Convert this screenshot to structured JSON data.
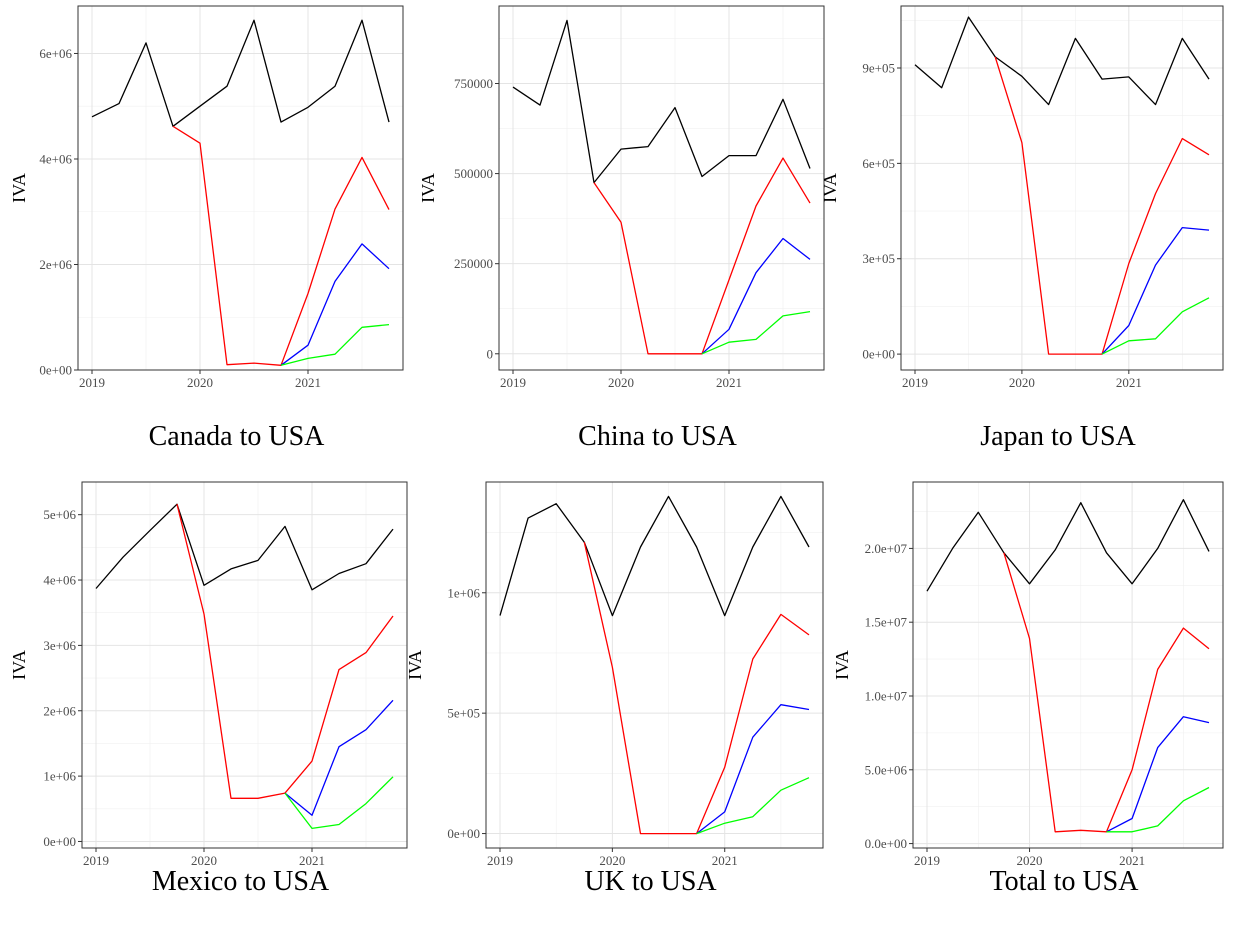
{
  "figure": {
    "series_colors": {
      "baseline": "#000000",
      "red": "#ff0000",
      "blue": "#0000ff",
      "green": "#00ff00"
    }
  },
  "chart_data": [
    {
      "type": "line",
      "title": "Canada to USA",
      "ylabel": "IVA",
      "x": [
        2019,
        2019.25,
        2019.5,
        2019.75,
        2020,
        2020.25,
        2020.5,
        2020.75,
        2021,
        2021.25,
        2021.5,
        2021.75
      ],
      "xlim": [
        2019,
        2021.75
      ],
      "xticks": [
        2019,
        2020,
        2021
      ],
      "xtick_labels": [
        "2019",
        "2020",
        "2021"
      ],
      "ylim": [
        0,
        6900000
      ],
      "yticks": [
        0,
        2000000,
        4000000,
        6000000
      ],
      "ytick_labels": [
        "0e+00",
        "2e+06",
        "4e+06",
        "6e+06"
      ],
      "grid": true,
      "series": [
        {
          "color": "#000000",
          "x": [
            2019,
            2019.25,
            2019.5,
            2019.75,
            2020,
            2020.25,
            2020.5,
            2020.75,
            2021,
            2021.25,
            2021.5,
            2021.75
          ],
          "values": [
            4800000,
            5050000,
            6200000,
            4620000,
            5000000,
            5380000,
            6630000,
            4700000,
            4980000,
            5380000,
            6630000,
            4700000
          ]
        },
        {
          "color": "#ff0000",
          "x": [
            2019.75,
            2020,
            2020.25,
            2020.5,
            2020.75,
            2021,
            2021.25,
            2021.5,
            2021.75
          ],
          "values": [
            4620000,
            4300000,
            100000,
            130000,
            90000,
            1450000,
            3050000,
            4030000,
            3040000
          ]
        },
        {
          "color": "#0000ff",
          "x": [
            2020.75,
            2021,
            2021.25,
            2021.5,
            2021.75
          ],
          "values": [
            90000,
            470000,
            1680000,
            2390000,
            1920000
          ]
        },
        {
          "color": "#00ff00",
          "x": [
            2020.75,
            2021,
            2021.25,
            2021.5,
            2021.75
          ],
          "values": [
            90000,
            220000,
            300000,
            810000,
            860000
          ]
        }
      ]
    },
    {
      "type": "line",
      "title": "China to USA",
      "ylabel": "IVA",
      "x": [
        2019,
        2019.25,
        2019.5,
        2019.75,
        2020,
        2020.25,
        2020.5,
        2020.75,
        2021,
        2021.25,
        2021.5,
        2021.75
      ],
      "xlim": [
        2019,
        2021.75
      ],
      "xticks": [
        2019,
        2020,
        2021
      ],
      "xtick_labels": [
        "2019",
        "2020",
        "2021"
      ],
      "ylim": [
        -45000,
        965000
      ],
      "yticks": [
        0,
        250000,
        500000,
        750000
      ],
      "ytick_labels": [
        "0",
        "250000",
        "500000",
        "750000"
      ],
      "grid": true,
      "series": [
        {
          "color": "#000000",
          "x": [
            2019,
            2019.25,
            2019.5,
            2019.75,
            2020,
            2020.25,
            2020.5,
            2020.75,
            2021,
            2021.25,
            2021.5,
            2021.75
          ],
          "values": [
            740000,
            690000,
            925000,
            475000,
            568000,
            575000,
            683000,
            492000,
            550000,
            550000,
            706000,
            514000
          ]
        },
        {
          "color": "#ff0000",
          "x": [
            2019.75,
            2020,
            2020.25,
            2020.5,
            2020.75,
            2021,
            2021.25,
            2021.5,
            2021.75
          ],
          "values": [
            475000,
            365000,
            0,
            0,
            0,
            205000,
            410000,
            543000,
            418000
          ]
        },
        {
          "color": "#0000ff",
          "x": [
            2020.75,
            2021,
            2021.25,
            2021.5,
            2021.75
          ],
          "values": [
            0,
            68000,
            225000,
            320000,
            262000
          ]
        },
        {
          "color": "#00ff00",
          "x": [
            2020.75,
            2021,
            2021.25,
            2021.5,
            2021.75
          ],
          "values": [
            0,
            32000,
            40000,
            105000,
            117000
          ]
        }
      ]
    },
    {
      "type": "line",
      "title": "Japan to USA",
      "ylabel": "IVA",
      "x": [
        2019,
        2019.25,
        2019.5,
        2019.75,
        2020,
        2020.25,
        2020.5,
        2020.75,
        2021,
        2021.25,
        2021.5,
        2021.75
      ],
      "xlim": [
        2019,
        2021.75
      ],
      "xticks": [
        2019,
        2020,
        2021
      ],
      "xtick_labels": [
        "2019",
        "2020",
        "2021"
      ],
      "ylim": [
        -50000,
        1095000
      ],
      "yticks": [
        0,
        300000,
        600000,
        900000
      ],
      "ytick_labels": [
        "0e+00",
        "3e+05",
        "6e+05",
        "9e+05"
      ],
      "grid": true,
      "series": [
        {
          "color": "#000000",
          "x": [
            2019,
            2019.25,
            2019.5,
            2019.75,
            2020,
            2020.25,
            2020.5,
            2020.75,
            2021,
            2021.25,
            2021.5,
            2021.75
          ],
          "values": [
            910000,
            838000,
            1060000,
            935000,
            874000,
            785000,
            993000,
            865000,
            872000,
            785000,
            993000,
            865000
          ]
        },
        {
          "color": "#ff0000",
          "x": [
            2019.75,
            2020,
            2020.25,
            2020.5,
            2020.75,
            2021,
            2021.25,
            2021.5,
            2021.75
          ],
          "values": [
            935000,
            665000,
            0,
            0,
            0,
            285000,
            505000,
            678000,
            627000
          ]
        },
        {
          "color": "#0000ff",
          "x": [
            2020.75,
            2021,
            2021.25,
            2021.5,
            2021.75
          ],
          "values": [
            0,
            90000,
            280000,
            398000,
            390000
          ]
        },
        {
          "color": "#00ff00",
          "x": [
            2020.75,
            2021,
            2021.25,
            2021.5,
            2021.75
          ],
          "values": [
            0,
            42000,
            48000,
            133000,
            177000
          ]
        }
      ]
    },
    {
      "type": "line",
      "title": "Mexico to USA",
      "ylabel": "IVA",
      "x": [
        2019,
        2019.25,
        2019.5,
        2019.75,
        2020,
        2020.25,
        2020.5,
        2020.75,
        2021,
        2021.25,
        2021.5,
        2021.75
      ],
      "xlim": [
        2019,
        2021.75
      ],
      "xticks": [
        2019,
        2020,
        2021
      ],
      "xtick_labels": [
        "2019",
        "2020",
        "2021"
      ],
      "ylim": [
        -100000,
        5500000
      ],
      "yticks": [
        0,
        1000000,
        2000000,
        3000000,
        4000000,
        5000000
      ],
      "ytick_labels": [
        "0e+00",
        "1e+06",
        "2e+06",
        "3e+06",
        "4e+06",
        "5e+06"
      ],
      "grid": true,
      "series": [
        {
          "color": "#000000",
          "x": [
            2019,
            2019.25,
            2019.5,
            2019.75,
            2020,
            2020.25,
            2020.5,
            2020.75,
            2021,
            2021.25,
            2021.5,
            2021.75
          ],
          "values": [
            3870000,
            4350000,
            4760000,
            5160000,
            3920000,
            4170000,
            4300000,
            4820000,
            3850000,
            4100000,
            4250000,
            4780000
          ]
        },
        {
          "color": "#ff0000",
          "x": [
            2019.75,
            2020,
            2020.25,
            2020.5,
            2020.75,
            2021,
            2021.25,
            2021.5,
            2021.75
          ],
          "values": [
            5160000,
            3480000,
            660000,
            660000,
            740000,
            1230000,
            2630000,
            2890000,
            3450000
          ]
        },
        {
          "color": "#0000ff",
          "x": [
            2020.75,
            2021,
            2021.25,
            2021.5,
            2021.75
          ],
          "values": [
            740000,
            400000,
            1450000,
            1710000,
            2160000
          ]
        },
        {
          "color": "#00ff00",
          "x": [
            2020.75,
            2021,
            2021.25,
            2021.5,
            2021.75
          ],
          "values": [
            740000,
            200000,
            260000,
            580000,
            990000
          ]
        }
      ]
    },
    {
      "type": "line",
      "title": "UK to USA",
      "ylabel": "IVA",
      "x": [
        2019,
        2019.25,
        2019.5,
        2019.75,
        2020,
        2020.25,
        2020.5,
        2020.75,
        2021,
        2021.25,
        2021.5,
        2021.75
      ],
      "xlim": [
        2019,
        2021.75
      ],
      "xticks": [
        2019,
        2020,
        2021
      ],
      "xtick_labels": [
        "2019",
        "2020",
        "2021"
      ],
      "ylim": [
        -60000,
        1460000
      ],
      "yticks": [
        0,
        500000,
        1000000
      ],
      "ytick_labels": [
        "0e+00",
        "5e+05",
        "1e+06"
      ],
      "grid": true,
      "series": [
        {
          "color": "#000000",
          "x": [
            2019,
            2019.25,
            2019.5,
            2019.75,
            2020,
            2020.25,
            2020.5,
            2020.75,
            2021,
            2021.25,
            2021.5,
            2021.75
          ],
          "values": [
            905000,
            1310000,
            1370000,
            1210000,
            905000,
            1190000,
            1400000,
            1190000,
            905000,
            1190000,
            1400000,
            1190000
          ]
        },
        {
          "color": "#ff0000",
          "x": [
            2019.75,
            2020,
            2020.25,
            2020.5,
            2020.75,
            2021,
            2021.25,
            2021.5,
            2021.75
          ],
          "values": [
            1210000,
            690000,
            0,
            0,
            0,
            275000,
            725000,
            910000,
            825000
          ]
        },
        {
          "color": "#0000ff",
          "x": [
            2020.75,
            2021,
            2021.25,
            2021.5,
            2021.75
          ],
          "values": [
            0,
            90000,
            400000,
            535000,
            515000
          ]
        },
        {
          "color": "#00ff00",
          "x": [
            2020.75,
            2021,
            2021.25,
            2021.5,
            2021.75
          ],
          "values": [
            0,
            43000,
            70000,
            180000,
            232000
          ]
        }
      ]
    },
    {
      "type": "line",
      "title": "Total to USA",
      "ylabel": "IVA",
      "x": [
        2019,
        2019.25,
        2019.5,
        2019.75,
        2020,
        2020.25,
        2020.5,
        2020.75,
        2021,
        2021.25,
        2021.5,
        2021.75
      ],
      "xlim": [
        2019,
        2021.75
      ],
      "xticks": [
        2019,
        2020,
        2021
      ],
      "xtick_labels": [
        "2019",
        "2020",
        "2021"
      ],
      "ylim": [
        -300000,
        24500000
      ],
      "yticks": [
        0,
        5000000,
        10000000,
        15000000,
        20000000
      ],
      "ytick_labels": [
        "0.0e+00",
        "5.0e+06",
        "1.0e+07",
        "1.5e+07",
        "2.0e+07"
      ],
      "grid": true,
      "series": [
        {
          "color": "#000000",
          "x": [
            2019,
            2019.25,
            2019.5,
            2019.75,
            2020,
            2020.25,
            2020.5,
            2020.75,
            2021,
            2021.25,
            2021.5,
            2021.75
          ],
          "values": [
            17100000,
            20000000,
            22450000,
            19700000,
            17600000,
            19900000,
            23100000,
            19700000,
            17600000,
            20000000,
            23300000,
            19800000
          ]
        },
        {
          "color": "#ff0000",
          "x": [
            2019.75,
            2020,
            2020.25,
            2020.5,
            2020.75,
            2021,
            2021.25,
            2021.5,
            2021.75
          ],
          "values": [
            19700000,
            13900000,
            800000,
            900000,
            800000,
            5000000,
            11800000,
            14600000,
            13200000
          ]
        },
        {
          "color": "#0000ff",
          "x": [
            2020.75,
            2021,
            2021.25,
            2021.5,
            2021.75
          ],
          "values": [
            800000,
            1700000,
            6500000,
            8600000,
            8200000
          ]
        },
        {
          "color": "#00ff00",
          "x": [
            2020.75,
            2021,
            2021.25,
            2021.5,
            2021.75
          ],
          "values": [
            800000,
            800000,
            1200000,
            2900000,
            3800000
          ]
        }
      ]
    }
  ]
}
